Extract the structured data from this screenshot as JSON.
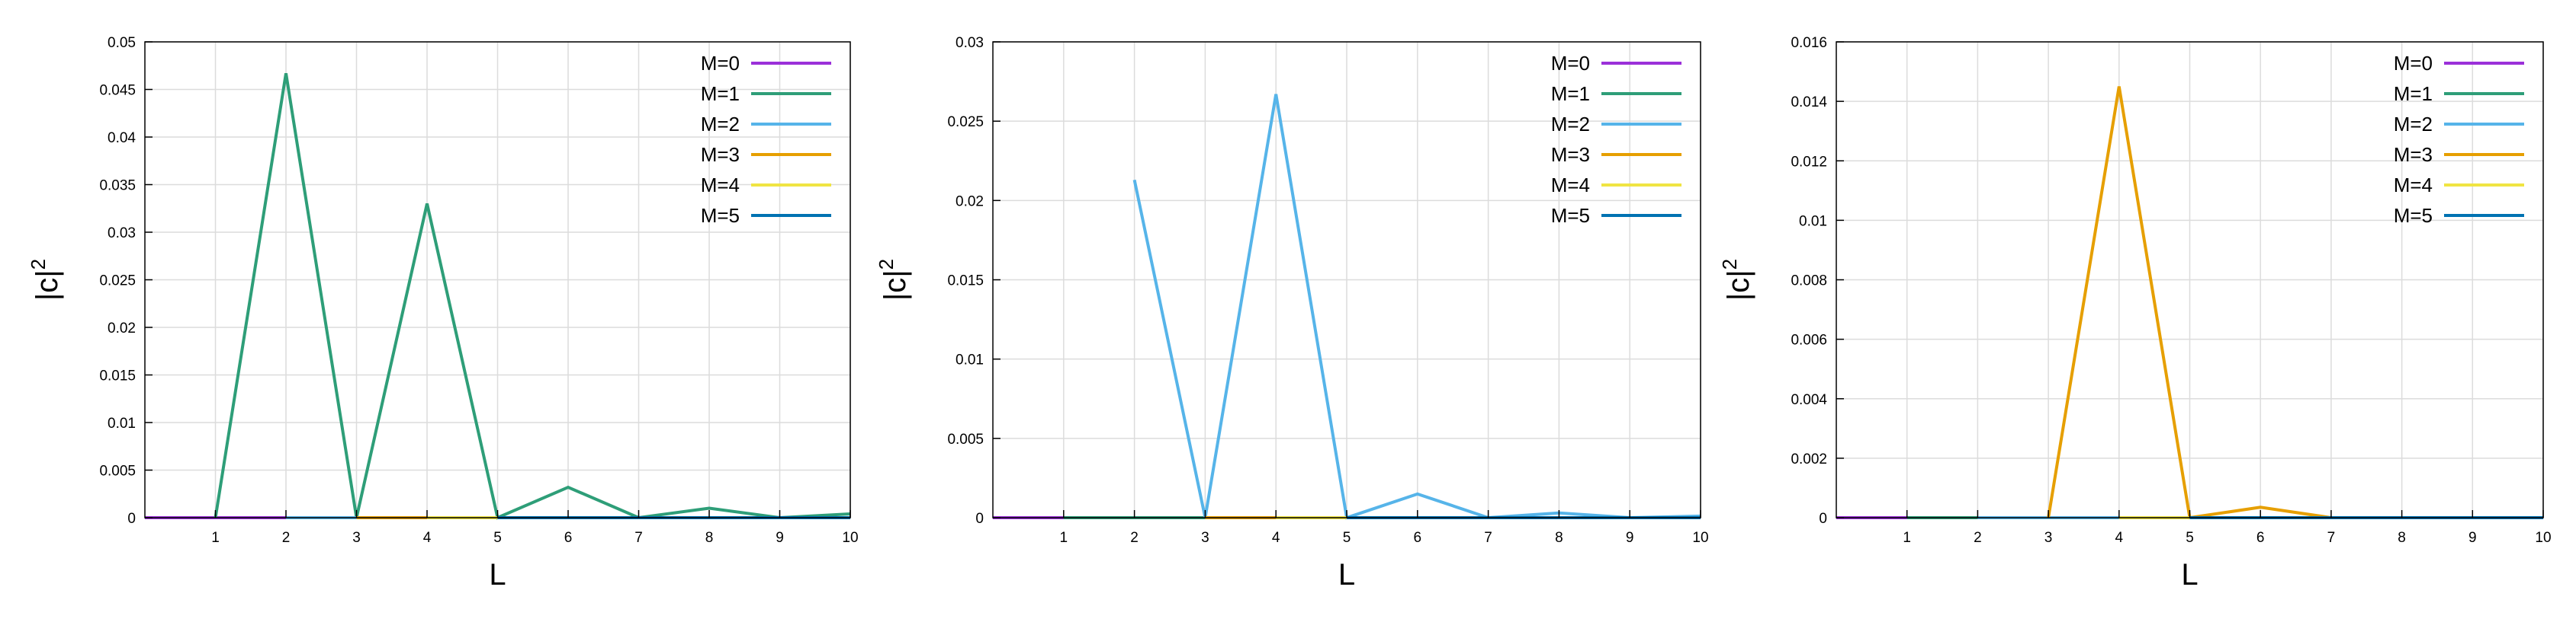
{
  "chart_data": [
    {
      "type": "line",
      "xlabel": "L",
      "ylabel": "|c|",
      "ylabel_sup": "2",
      "xlim": [
        0,
        10
      ],
      "ylim": [
        0,
        0.05
      ],
      "x_ticks": [
        1,
        2,
        3,
        4,
        5,
        6,
        7,
        8,
        9,
        10
      ],
      "y_ticks": [
        "0",
        "0.005",
        "0.01",
        "0.015",
        "0.02",
        "0.025",
        "0.03",
        "0.035",
        "0.04",
        "0.045",
        "0.05"
      ],
      "grid": true,
      "legend": "top-right",
      "series": [
        {
          "name": "M=0",
          "color": "#9b30d9",
          "x": [
            0,
            1,
            2,
            3,
            4,
            5,
            6,
            7,
            8,
            9,
            10
          ],
          "values": [
            0,
            0,
            0,
            0,
            0,
            0,
            0,
            0,
            0,
            0,
            0
          ]
        },
        {
          "name": "M=1",
          "color": "#2e9e78",
          "x": [
            1,
            2,
            3,
            4,
            5,
            6,
            7,
            8,
            9,
            10
          ],
          "values": [
            0,
            0.0467,
            0,
            0.033,
            0,
            0.0032,
            0,
            0.001,
            0,
            0.0004
          ]
        },
        {
          "name": "M=2",
          "color": "#56b4e9",
          "x": [
            2,
            3,
            4,
            5,
            6,
            7,
            8,
            9,
            10
          ],
          "values": [
            0,
            0,
            0,
            0,
            0,
            0,
            0,
            0,
            0
          ]
        },
        {
          "name": "M=3",
          "color": "#e69f00",
          "x": [
            3,
            4,
            5,
            6,
            7,
            8,
            9,
            10
          ],
          "values": [
            0,
            0,
            0,
            0,
            0,
            0,
            0,
            0
          ]
        },
        {
          "name": "M=4",
          "color": "#f0e442",
          "x": [
            4,
            5,
            6,
            7,
            8,
            9,
            10
          ],
          "values": [
            0,
            0,
            0,
            0,
            0,
            0,
            0
          ]
        },
        {
          "name": "M=5",
          "color": "#0072b2",
          "x": [
            5,
            6,
            7,
            8,
            9,
            10
          ],
          "values": [
            0,
            0,
            0,
            0,
            0,
            0
          ]
        }
      ]
    },
    {
      "type": "line",
      "xlabel": "L",
      "ylabel": "|c|",
      "ylabel_sup": "2",
      "xlim": [
        0,
        10
      ],
      "ylim": [
        0,
        0.03
      ],
      "x_ticks": [
        1,
        2,
        3,
        4,
        5,
        6,
        7,
        8,
        9,
        10
      ],
      "y_ticks": [
        "0",
        "0.005",
        "0.01",
        "0.015",
        "0.02",
        "0.025",
        "0.03"
      ],
      "grid": true,
      "legend": "top-right",
      "series": [
        {
          "name": "M=0",
          "color": "#9b30d9",
          "x": [
            0,
            1,
            2,
            3,
            4,
            5,
            6,
            7,
            8,
            9,
            10
          ],
          "values": [
            0,
            0,
            0,
            0,
            0,
            0,
            0,
            0,
            0,
            0,
            0
          ]
        },
        {
          "name": "M=1",
          "color": "#2e9e78",
          "x": [
            1,
            2,
            3,
            4,
            5,
            6,
            7,
            8,
            9,
            10
          ],
          "values": [
            0,
            0,
            0,
            0,
            0,
            0,
            0,
            0,
            0,
            0
          ]
        },
        {
          "name": "M=2",
          "color": "#56b4e9",
          "x": [
            2,
            3,
            4,
            5,
            6,
            7,
            8,
            9,
            10
          ],
          "values": [
            0.0213,
            0,
            0.0267,
            0,
            0.0015,
            0,
            0.0003,
            0,
            0.0001
          ]
        },
        {
          "name": "M=3",
          "color": "#e69f00",
          "x": [
            3,
            4,
            5,
            6,
            7,
            8,
            9,
            10
          ],
          "values": [
            0,
            0,
            0,
            0,
            0,
            0,
            0,
            0
          ]
        },
        {
          "name": "M=4",
          "color": "#f0e442",
          "x": [
            4,
            5,
            6,
            7,
            8,
            9,
            10
          ],
          "values": [
            0,
            0,
            0,
            0,
            0,
            0,
            0
          ]
        },
        {
          "name": "M=5",
          "color": "#0072b2",
          "x": [
            5,
            6,
            7,
            8,
            9,
            10
          ],
          "values": [
            0,
            0,
            0,
            0,
            0,
            0
          ]
        }
      ]
    },
    {
      "type": "line",
      "xlabel": "L",
      "ylabel": "|c|",
      "ylabel_sup": "2",
      "xlim": [
        0,
        10
      ],
      "ylim": [
        0,
        0.016
      ],
      "x_ticks": [
        1,
        2,
        3,
        4,
        5,
        6,
        7,
        8,
        9,
        10
      ],
      "y_ticks": [
        "0",
        "0.002",
        "0.004",
        "0.006",
        "0.008",
        "0.01",
        "0.012",
        "0.014",
        "0.016"
      ],
      "grid": true,
      "legend": "top-right",
      "series": [
        {
          "name": "M=0",
          "color": "#9b30d9",
          "x": [
            0,
            1,
            2,
            3,
            4,
            5,
            6,
            7,
            8,
            9,
            10
          ],
          "values": [
            0,
            0,
            0,
            0,
            0,
            0,
            0,
            0,
            0,
            0,
            0
          ]
        },
        {
          "name": "M=1",
          "color": "#2e9e78",
          "x": [
            1,
            2,
            3,
            4,
            5,
            6,
            7,
            8,
            9,
            10
          ],
          "values": [
            0,
            0,
            0,
            0,
            0,
            0,
            0,
            0,
            0,
            0
          ]
        },
        {
          "name": "M=2",
          "color": "#56b4e9",
          "x": [
            2,
            3,
            4,
            5,
            6,
            7,
            8,
            9,
            10
          ],
          "values": [
            0,
            0,
            0,
            0,
            0,
            0,
            0,
            0,
            0
          ]
        },
        {
          "name": "M=3",
          "color": "#e69f00",
          "x": [
            3,
            4,
            5,
            6,
            7,
            8,
            9,
            10
          ],
          "values": [
            0,
            0.0145,
            0,
            0.00035,
            0,
            0,
            0,
            0
          ]
        },
        {
          "name": "M=4",
          "color": "#f0e442",
          "x": [
            4,
            5,
            6,
            7,
            8,
            9,
            10
          ],
          "values": [
            0,
            0,
            0,
            0,
            0,
            0,
            0
          ]
        },
        {
          "name": "M=5",
          "color": "#0072b2",
          "x": [
            5,
            6,
            7,
            8,
            9,
            10
          ],
          "values": [
            0,
            0,
            0,
            0,
            0,
            0
          ]
        }
      ]
    }
  ]
}
